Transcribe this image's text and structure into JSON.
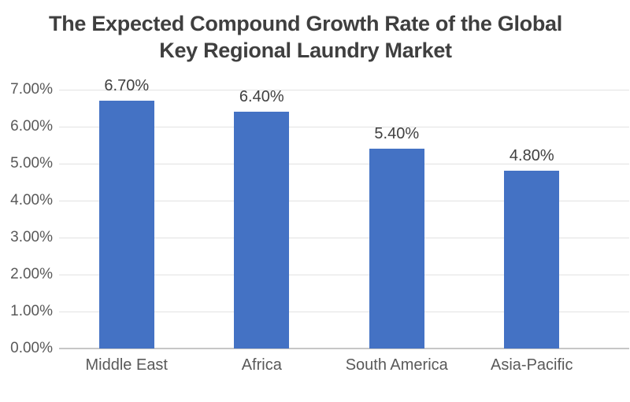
{
  "chart_data": {
    "type": "bar",
    "title": "The Expected Compound Growth Rate of the Global Key Regional Laundry Market",
    "title_line1": "The Expected Compound Growth Rate of the Global",
    "title_line2": "Key Regional Laundry Market",
    "categories": [
      "Middle East",
      "Africa",
      "South America",
      "Asia-Pacific"
    ],
    "values": [
      6.7,
      6.4,
      5.4,
      4.8
    ],
    "data_labels": [
      "6.70%",
      "6.40%",
      "5.40%",
      "4.80%"
    ],
    "y_ticks": [
      "0.00%",
      "1.00%",
      "2.00%",
      "3.00%",
      "4.00%",
      "5.00%",
      "6.00%",
      "7.00%"
    ],
    "ylim": [
      0,
      7
    ],
    "xlabel": "",
    "ylabel": "",
    "grid": true,
    "legend": "none",
    "colors": {
      "bar": "#4472C4",
      "title_text": "#3F3F3F",
      "axis_text": "#595959",
      "data_label_text": "#404040",
      "gridline": "#E2E2E2",
      "axis_line": "#C6C6C6",
      "background": "#FFFFFF"
    }
  }
}
